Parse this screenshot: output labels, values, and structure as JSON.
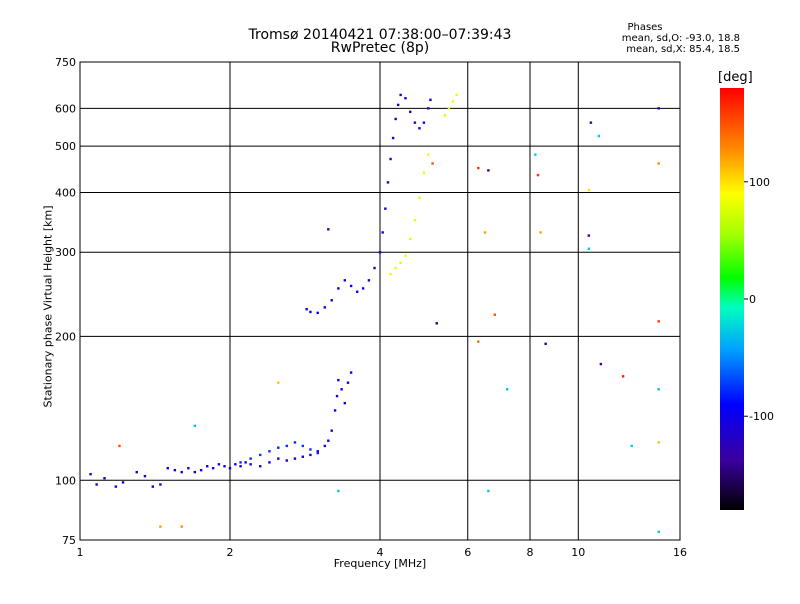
{
  "chart_data": {
    "type": "scatter",
    "title": "Tromsø 20140421 07:38:00–07:39:43",
    "subtitle": "RwPretec (8p)",
    "xlabel": "Frequency [MHz]",
    "ylabel": "Stationary phase Virtual Height [km]",
    "x_scale": "log",
    "y_scale": "log",
    "xlim": [
      1,
      16
    ],
    "ylim": [
      75,
      750
    ],
    "x_ticks": [
      1,
      2,
      4,
      6,
      8,
      10,
      16
    ],
    "y_ticks": [
      75,
      100,
      200,
      300,
      400,
      500,
      600,
      750
    ],
    "grid": true,
    "phase_stats": {
      "heading": "Phases",
      "o_mode": "mean, sd,O:  -93.0, 18.8",
      "x_mode": "mean, sd,X:   85.4, 18.5"
    },
    "colorbar": {
      "label": "[deg]",
      "ticks": [
        100,
        0,
        -100
      ],
      "min": -180,
      "max": 180
    },
    "series": [
      {
        "points": [
          [
            1.05,
            103,
            -110
          ],
          [
            1.08,
            98,
            -105
          ],
          [
            1.12,
            101,
            -112
          ],
          [
            1.18,
            97,
            -108
          ],
          [
            1.22,
            99,
            -115
          ],
          [
            1.3,
            104,
            -110
          ],
          [
            1.35,
            102,
            -112
          ],
          [
            1.4,
            97,
            -105
          ],
          [
            1.45,
            98,
            -108
          ],
          [
            1.5,
            106,
            -110
          ],
          [
            1.55,
            105,
            -115
          ],
          [
            1.6,
            104,
            -105
          ],
          [
            1.65,
            106,
            -110
          ],
          [
            1.7,
            104,
            -108
          ],
          [
            1.75,
            105,
            -112
          ],
          [
            1.8,
            107,
            -110
          ],
          [
            1.85,
            106,
            -105
          ],
          [
            1.9,
            108,
            -110
          ],
          [
            1.95,
            107,
            -115
          ],
          [
            2.0,
            106,
            -108
          ],
          [
            2.05,
            108,
            -112
          ],
          [
            2.1,
            107,
            -110
          ],
          [
            2.15,
            109,
            -105
          ],
          [
            2.2,
            108,
            -110
          ],
          [
            2.3,
            107,
            -115
          ],
          [
            2.4,
            109,
            -108
          ],
          [
            2.5,
            111,
            -112
          ],
          [
            2.6,
            110,
            -110
          ],
          [
            2.7,
            111,
            -105
          ],
          [
            2.8,
            112,
            -110
          ],
          [
            2.9,
            113,
            -115
          ],
          [
            3.0,
            115,
            -108
          ],
          [
            3.1,
            118,
            -112
          ],
          [
            3.15,
            121,
            -110
          ],
          [
            3.2,
            127,
            -105
          ],
          [
            3.25,
            140,
            -110
          ],
          [
            3.28,
            150,
            -115
          ],
          [
            3.3,
            162,
            -108
          ],
          [
            3.35,
            155,
            -112
          ],
          [
            3.4,
            145,
            -110
          ],
          [
            3.45,
            160,
            -105
          ],
          [
            3.5,
            168,
            -110
          ]
        ]
      },
      {
        "points": [
          [
            2.1,
            109,
            -80
          ],
          [
            2.2,
            111,
            -82
          ],
          [
            2.3,
            113,
            -78
          ],
          [
            2.4,
            115,
            -80
          ],
          [
            2.5,
            117,
            -84
          ],
          [
            2.6,
            118,
            -80
          ],
          [
            2.7,
            120,
            -82
          ],
          [
            2.8,
            118,
            -78
          ],
          [
            2.9,
            116,
            -80
          ],
          [
            3.0,
            114,
            -85
          ]
        ]
      },
      {
        "points": [
          [
            2.85,
            228,
            -100
          ],
          [
            2.9,
            225,
            -98
          ],
          [
            3.0,
            224,
            -102
          ],
          [
            3.1,
            230,
            -100
          ],
          [
            3.2,
            238,
            -105
          ],
          [
            3.3,
            252,
            -110
          ],
          [
            3.4,
            262,
            -112
          ],
          [
            3.5,
            255,
            -110
          ],
          [
            3.6,
            248,
            -108
          ],
          [
            3.7,
            252,
            -112
          ],
          [
            3.8,
            262,
            -110
          ],
          [
            3.9,
            278,
            -115
          ],
          [
            4.0,
            300,
            -112
          ],
          [
            4.05,
            330,
            -115
          ],
          [
            4.1,
            370,
            -118
          ],
          [
            4.15,
            420,
            -115
          ],
          [
            4.2,
            470,
            -118
          ],
          [
            4.25,
            520,
            -115
          ],
          [
            4.3,
            570,
            -118
          ],
          [
            4.35,
            610,
            -115
          ],
          [
            4.4,
            640,
            -118
          ],
          [
            4.5,
            630,
            -115
          ],
          [
            4.6,
            590,
            -118
          ],
          [
            4.7,
            560,
            -115
          ],
          [
            4.8,
            545,
            -118
          ],
          [
            4.9,
            560,
            -115
          ],
          [
            5.0,
            600,
            -118
          ],
          [
            5.05,
            625,
            -115
          ]
        ]
      },
      {
        "points": [
          [
            4.2,
            270,
            80
          ],
          [
            4.3,
            278,
            82
          ],
          [
            4.4,
            285,
            78
          ],
          [
            4.5,
            295,
            85
          ],
          [
            4.6,
            320,
            80
          ],
          [
            4.7,
            350,
            82
          ],
          [
            4.8,
            390,
            78
          ],
          [
            4.9,
            440,
            80
          ],
          [
            5.0,
            480,
            85
          ],
          [
            5.4,
            580,
            75
          ],
          [
            5.5,
            600,
            78
          ],
          [
            5.6,
            620,
            80
          ],
          [
            5.7,
            640,
            82
          ]
        ]
      },
      {
        "points": [
          [
            1.2,
            118,
            150
          ],
          [
            1.45,
            80,
            120
          ],
          [
            1.6,
            80,
            125
          ],
          [
            2.5,
            160,
            110
          ],
          [
            5.1,
            460,
            150
          ],
          [
            6.3,
            450,
            160
          ],
          [
            6.3,
            195,
            140
          ],
          [
            6.5,
            330,
            120
          ],
          [
            6.8,
            222,
            150
          ],
          [
            8.3,
            435,
            160
          ],
          [
            8.4,
            330,
            120
          ],
          [
            10.5,
            405,
            100
          ],
          [
            12.3,
            165,
            170
          ],
          [
            14.5,
            460,
            130
          ],
          [
            14.5,
            215,
            160
          ],
          [
            14.5,
            120,
            110
          ]
        ]
      },
      {
        "points": [
          [
            3.15,
            335,
            -140
          ],
          [
            5.2,
            213,
            -150
          ],
          [
            6.6,
            445,
            -140
          ],
          [
            8.6,
            193,
            -150
          ],
          [
            10.5,
            325,
            -140
          ],
          [
            10.6,
            560,
            -135
          ],
          [
            11.1,
            175,
            -140
          ],
          [
            14.5,
            600,
            -110
          ]
        ]
      },
      {
        "points": [
          [
            1.7,
            130,
            -30
          ],
          [
            3.3,
            95,
            -30
          ],
          [
            6.6,
            95,
            -30
          ],
          [
            7.2,
            155,
            -30
          ],
          [
            8.2,
            480,
            -30
          ],
          [
            10.5,
            305,
            -30
          ],
          [
            11.0,
            525,
            -30
          ],
          [
            12.8,
            118,
            -30
          ],
          [
            14.5,
            155,
            -30
          ],
          [
            14.5,
            78,
            -30
          ]
        ]
      }
    ]
  }
}
